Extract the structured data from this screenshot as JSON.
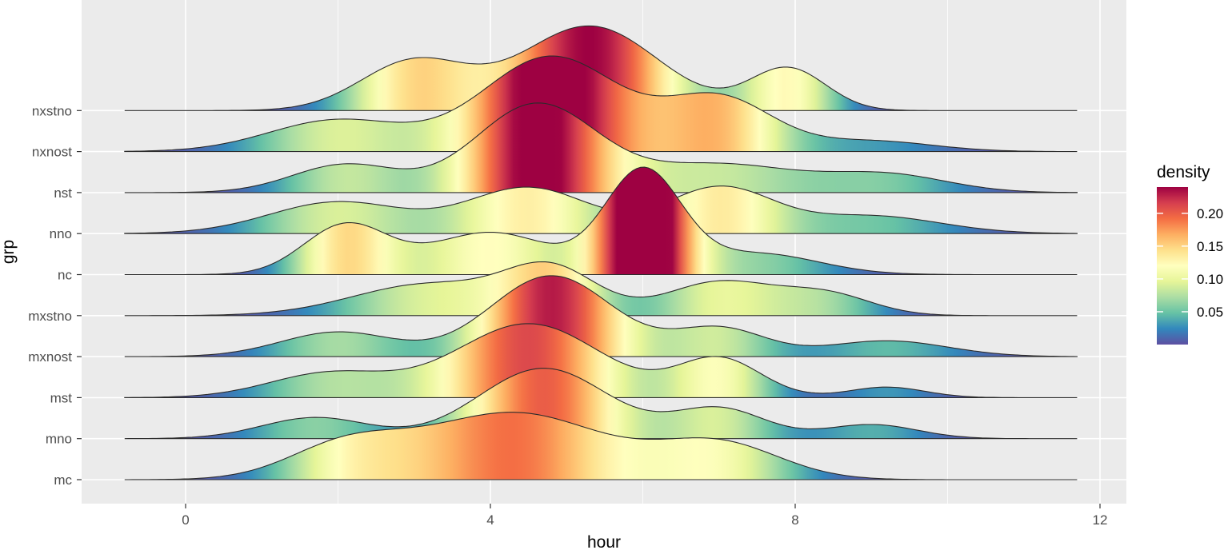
{
  "chart_data": {
    "type": "ridgeline",
    "xlabel": "hour",
    "ylabel": "grp",
    "xlim": [
      -1.4,
      12.3
    ],
    "x_ticks": [
      0,
      4,
      8,
      12
    ],
    "x_tick_labels": [
      "0",
      "4",
      "8",
      "12"
    ],
    "categories": [
      "mc",
      "mno",
      "mst",
      "mxnost",
      "mxstno",
      "nc",
      "nno",
      "nst",
      "nxnost",
      "nxstno"
    ],
    "grid": true,
    "legend": {
      "title": "density",
      "placement": "right",
      "labels": [
        "0.20",
        "0.15",
        "0.10",
        "0.05"
      ],
      "values": [
        0.2,
        0.15,
        0.1,
        0.05
      ],
      "range": [
        0.0,
        0.24
      ]
    },
    "colors": [
      "#5E4FA2",
      "#3288BD",
      "#66C2A5",
      "#ABDDA4",
      "#E6F598",
      "#FFFFBF",
      "#FEE08B",
      "#FDAE61",
      "#F46D43",
      "#D53E4F",
      "#9E0142"
    ],
    "series": [
      {
        "name": "mc",
        "x_range": [
          -0.8,
          11.7
        ],
        "peaks": [
          [
            2.1,
            0.09,
            0.75
          ],
          [
            4.3,
            0.19,
            1.2
          ],
          [
            7.0,
            0.1,
            0.8
          ]
        ]
      },
      {
        "name": "mno",
        "x_range": [
          -0.8,
          11.7
        ],
        "peaks": [
          [
            1.7,
            0.06,
            0.7
          ],
          [
            4.7,
            0.2,
            0.85
          ],
          [
            7.0,
            0.085,
            0.6
          ],
          [
            9.0,
            0.04,
            0.6
          ]
        ]
      },
      {
        "name": "mst",
        "x_range": [
          -0.8,
          11.7
        ],
        "peaks": [
          [
            1.9,
            0.07,
            0.8
          ],
          [
            4.5,
            0.21,
            0.95
          ],
          [
            7.0,
            0.11,
            0.55
          ],
          [
            9.2,
            0.03,
            0.5
          ]
        ]
      },
      {
        "name": "mxnost",
        "x_range": [
          -0.8,
          11.7
        ],
        "peaks": [
          [
            2.0,
            0.07,
            0.75
          ],
          [
            4.8,
            0.23,
            0.8
          ],
          [
            7.0,
            0.08,
            0.6
          ],
          [
            9.2,
            0.045,
            0.8
          ]
        ]
      },
      {
        "name": "mxstno",
        "x_range": [
          -0.8,
          11.7
        ],
        "peaks": [
          [
            3.2,
            0.09,
            1.0
          ],
          [
            4.8,
            0.125,
            0.6
          ],
          [
            7.0,
            0.095,
            0.7
          ],
          [
            8.4,
            0.06,
            0.6
          ]
        ]
      },
      {
        "name": "nc",
        "x_range": [
          -0.8,
          11.7
        ],
        "peaks": [
          [
            2.1,
            0.14,
            0.55
          ],
          [
            4.0,
            0.12,
            0.8
          ],
          [
            6.0,
            0.29,
            0.5
          ],
          [
            7.5,
            0.06,
            0.8
          ]
        ]
      },
      {
        "name": "nno",
        "x_range": [
          -0.8,
          11.7
        ],
        "peaks": [
          [
            2.0,
            0.09,
            0.9
          ],
          [
            4.5,
            0.13,
            0.8
          ],
          [
            7.0,
            0.13,
            0.7
          ],
          [
            9.0,
            0.05,
            0.9
          ]
        ]
      },
      {
        "name": "nst",
        "x_range": [
          -0.8,
          11.7
        ],
        "peaks": [
          [
            2.1,
            0.08,
            0.7
          ],
          [
            4.6,
            0.25,
            0.8
          ],
          [
            7.0,
            0.08,
            1.0
          ],
          [
            9.2,
            0.05,
            0.8
          ]
        ]
      },
      {
        "name": "nxnost",
        "x_range": [
          -0.8,
          11.7
        ],
        "peaks": [
          [
            2.0,
            0.09,
            0.9
          ],
          [
            4.8,
            0.27,
            0.9
          ],
          [
            7.0,
            0.15,
            0.7
          ],
          [
            9.0,
            0.03,
            0.8
          ]
        ]
      },
      {
        "name": "nxstno",
        "x_range": [
          -0.8,
          11.7
        ],
        "peaks": [
          [
            3.0,
            0.14,
            0.7
          ],
          [
            5.3,
            0.24,
            0.9
          ],
          [
            7.9,
            0.12,
            0.5
          ]
        ]
      }
    ]
  }
}
